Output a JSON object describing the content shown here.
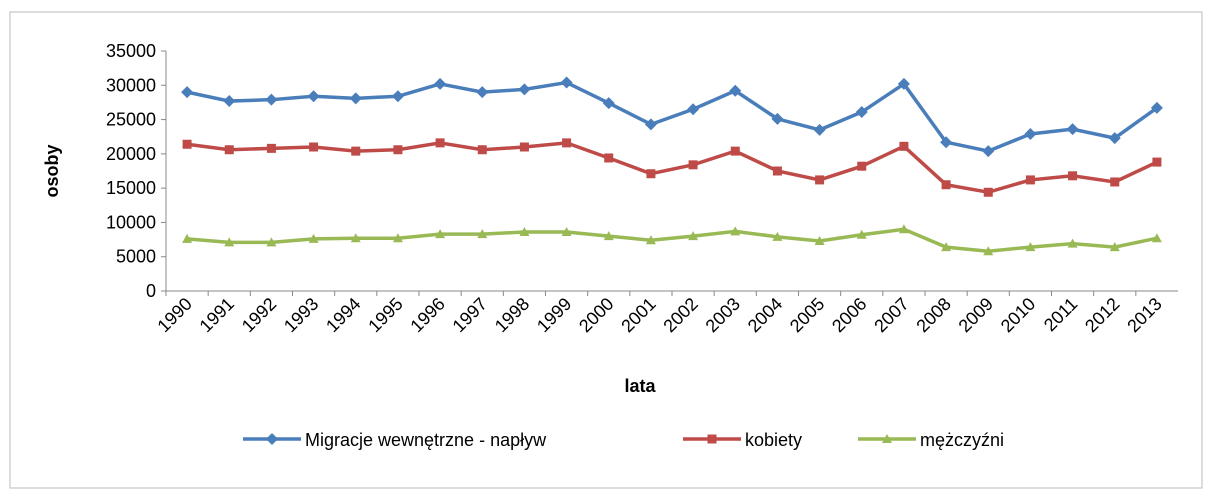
{
  "chart_data": {
    "type": "line",
    "xlabel": "lata",
    "ylabel": "osoby",
    "categories": [
      "1990",
      "1991",
      "1992",
      "1993",
      "1994",
      "1995",
      "1996",
      "1997",
      "1998",
      "1999",
      "2000",
      "2001",
      "2002",
      "2003",
      "2004",
      "2005",
      "2006",
      "2007",
      "2008",
      "2009",
      "2010",
      "2011",
      "2012",
      "2013"
    ],
    "series": [
      {
        "name": "Migracje wewnętrzne - napływ",
        "color": "#4a7ebb",
        "marker": "diamond",
        "values": [
          29000,
          27700,
          27900,
          28400,
          28100,
          28400,
          30200,
          29000,
          29400,
          30400,
          27400,
          24300,
          26500,
          29200,
          25100,
          23500,
          26100,
          30200,
          21700,
          20400,
          22900,
          23600,
          22300,
          26700
        ]
      },
      {
        "name": "kobiety",
        "color": "#be4b48",
        "marker": "square",
        "values": [
          21400,
          20600,
          20800,
          21000,
          20400,
          20600,
          21600,
          20600,
          21000,
          21600,
          19400,
          17100,
          18400,
          20400,
          17500,
          16200,
          18200,
          21100,
          15500,
          14400,
          16200,
          16800,
          15900,
          18800
        ]
      },
      {
        "name": "mężczyźni",
        "color": "#98b954",
        "marker": "triangle",
        "values": [
          7600,
          7100,
          7100,
          7600,
          7700,
          7700,
          8300,
          8300,
          8600,
          8600,
          8000,
          7400,
          8000,
          8700,
          7900,
          7300,
          8200,
          9000,
          6400,
          5800,
          6400,
          6900,
          6400,
          7700
        ]
      }
    ],
    "ylim": [
      0,
      35000
    ],
    "yticks": [
      0,
      5000,
      10000,
      15000,
      20000,
      25000,
      30000,
      35000
    ],
    "grid": false,
    "legend": "bottom"
  }
}
